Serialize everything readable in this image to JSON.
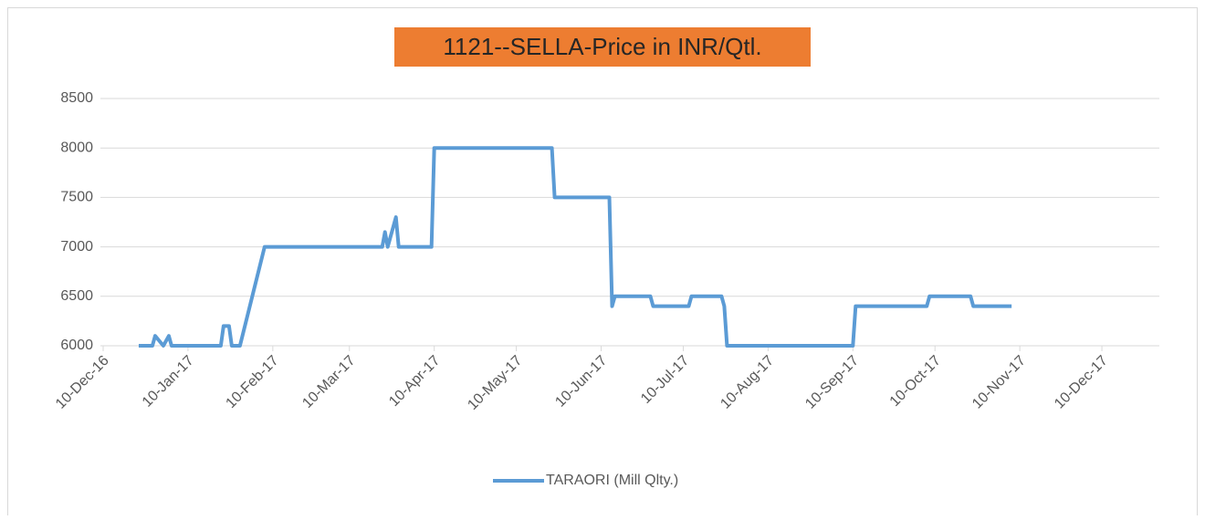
{
  "chart_data": {
    "type": "line",
    "title": "1121--SELLA-Price in INR/Qtl.",
    "x": [
      "2016-12-23",
      "2016-12-28",
      "2016-12-29",
      "2017-01-01",
      "2017-01-03",
      "2017-01-04",
      "2017-01-22",
      "2017-01-23",
      "2017-01-25",
      "2017-01-26",
      "2017-01-29",
      "2017-02-07",
      "2017-03-22",
      "2017-03-23",
      "2017-03-24",
      "2017-03-26",
      "2017-03-27",
      "2017-03-28",
      "2017-04-09",
      "2017-04-10",
      "2017-05-23",
      "2017-05-24",
      "2017-06-13",
      "2017-06-14",
      "2017-06-15",
      "2017-06-28",
      "2017-06-29",
      "2017-07-12",
      "2017-07-13",
      "2017-07-24",
      "2017-07-25",
      "2017-07-26",
      "2017-09-10",
      "2017-09-11",
      "2017-10-07",
      "2017-10-08",
      "2017-10-23",
      "2017-10-24",
      "2017-11-07"
    ],
    "series": [
      {
        "name": "TARAORI (Mill Qlty.)",
        "color": "#5b9bd5",
        "values": [
          6000,
          6000,
          6100,
          6000,
          6100,
          6000,
          6000,
          6200,
          6200,
          6000,
          6000,
          7000,
          7000,
          7150,
          7000,
          7200,
          7300,
          7000,
          7000,
          8000,
          8000,
          7500,
          7500,
          6400,
          6500,
          6500,
          6400,
          6400,
          6500,
          6500,
          6400,
          6000,
          6000,
          6400,
          6400,
          6500,
          6500,
          6400,
          6400
        ]
      }
    ],
    "xlim": [
      "2016-12-09",
      "2017-12-31"
    ],
    "xticks": [
      {
        "value": "2016-12-10",
        "label": "10-Dec-16"
      },
      {
        "value": "2017-01-10",
        "label": "10-Jan-17"
      },
      {
        "value": "2017-02-10",
        "label": "10-Feb-17"
      },
      {
        "value": "2017-03-10",
        "label": "10-Mar-17"
      },
      {
        "value": "2017-04-10",
        "label": "10-Apr-17"
      },
      {
        "value": "2017-05-10",
        "label": "10-May-17"
      },
      {
        "value": "2017-06-10",
        "label": "10-Jun-17"
      },
      {
        "value": "2017-07-10",
        "label": "10-Jul-17"
      },
      {
        "value": "2017-08-10",
        "label": "10-Aug-17"
      },
      {
        "value": "2017-09-10",
        "label": "10-Sep-17"
      },
      {
        "value": "2017-10-10",
        "label": "10-Oct-17"
      },
      {
        "value": "2017-11-10",
        "label": "10-Nov-17"
      },
      {
        "value": "2017-12-10",
        "label": "10-Dec-17"
      }
    ],
    "ylim": [
      6000,
      8500
    ],
    "yticks": [
      6000,
      6500,
      7000,
      7500,
      8000,
      8500
    ],
    "grid": true,
    "legend": "bottom"
  }
}
